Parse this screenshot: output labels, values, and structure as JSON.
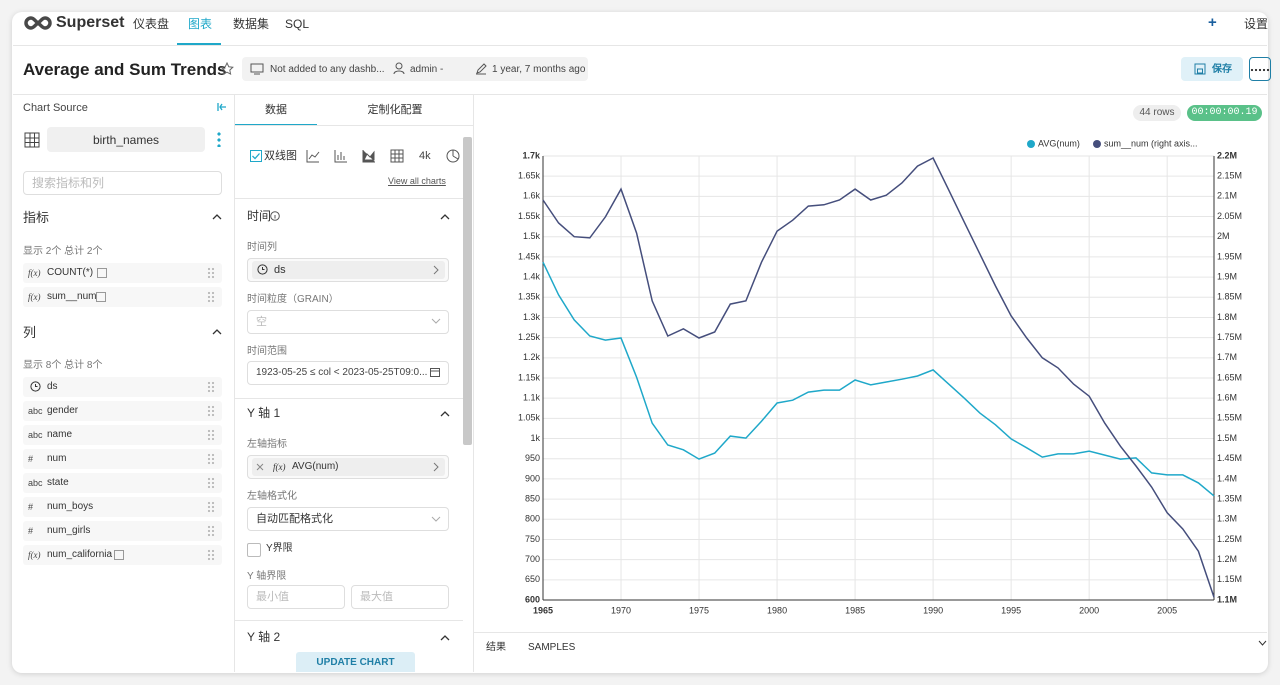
{
  "nav": {
    "brand": "Superset",
    "items": [
      "仪表盘",
      "图表",
      "数据集",
      "SQL"
    ],
    "settings": "设置"
  },
  "header": {
    "title": "Average and Sum Trends",
    "dashboards": "Not added to any dashb...",
    "owner": "admin -",
    "modified": "1 year, 7 months ago",
    "save": "保存"
  },
  "datasource": {
    "heading": "Chart Source",
    "name": "birth_names",
    "search_placeholder": "搜索指标和列",
    "metrics_heading": "指标",
    "metrics_count": "显示 2个 总计 2个",
    "metrics": [
      {
        "icon": "f(x)",
        "name": "COUNT(*)"
      },
      {
        "icon": "f(x)",
        "name": "sum__num"
      }
    ],
    "columns_heading": "列",
    "columns_count": "显示 8个 总计 8个",
    "columns": [
      {
        "name": "ds"
      },
      {
        "icon": "abc",
        "name": "gender"
      },
      {
        "icon": "abc",
        "name": "name"
      },
      {
        "icon": "#",
        "name": "num"
      },
      {
        "icon": "abc",
        "name": "state"
      },
      {
        "icon": "#",
        "name": "num_boys"
      },
      {
        "icon": "#",
        "name": "num_girls"
      },
      {
        "icon": "f(x)",
        "name": "num_california"
      }
    ]
  },
  "control_panel": {
    "tabs": [
      "数据",
      "定制化配置"
    ],
    "viz_type": "双线图",
    "viz_4k": "4k",
    "view_all": "View all charts",
    "time_section": "时间",
    "time_column_label": "时间列",
    "time_column": "ds",
    "grain_label": "时间粒度（GRAIN）",
    "grain_placeholder": "空",
    "range_label": "时间范围",
    "range": "1923-05-25 ≤ col < 2023-05-25T09:0...",
    "y1_section": "Y 轴 1",
    "left_metric_label": "左轴指标",
    "left_metric_icon": "f(x)",
    "left_metric": "AVG(num)",
    "left_format_label": "左轴格式化",
    "left_format": "自动匹配格式化",
    "y_bounds_check": "Y界限",
    "y_bounds_label": "Y 轴界限",
    "min_placeholder": "最小值",
    "max_placeholder": "最大值",
    "y2_section": "Y 轴 2",
    "update": "UPDATE CHART"
  },
  "results": {
    "rows": "44 rows",
    "timer": "00:00:00.19",
    "tabs": [
      "结果",
      "SAMPLES"
    ]
  },
  "chart_data": {
    "type": "line",
    "x": [
      1965,
      1966,
      1967,
      1968,
      1969,
      1970,
      1971,
      1972,
      1973,
      1974,
      1975,
      1976,
      1977,
      1978,
      1979,
      1980,
      1981,
      1982,
      1983,
      1984,
      1985,
      1986,
      1987,
      1988,
      1989,
      1990,
      1991,
      1992,
      1993,
      1994,
      1995,
      1996,
      1997,
      1998,
      1999,
      2000,
      2001,
      2002,
      2003,
      2004,
      2005,
      2006,
      2007,
      2008
    ],
    "series": [
      {
        "name": "AVG(num)",
        "color": "#1fa8c9",
        "values": [
          1437,
          1356,
          1294,
          1254,
          1244,
          1249,
          1152,
          1038,
          984,
          972,
          949,
          964,
          1006,
          1001,
          1043,
          1088,
          1095,
          1115,
          1120,
          1120,
          1145,
          1133,
          1140,
          1147,
          1155,
          1170,
          1135,
          1100,
          1063,
          1034,
          999,
          977,
          954,
          962,
          962,
          969,
          959,
          949,
          952,
          915,
          910,
          910,
          890,
          858
        ]
      },
      {
        "name": "sum__num (right axis...",
        "color": "#454e7c",
        "axis": "y2",
        "values": [
          2091000,
          2034000,
          2000000,
          1997000,
          2049000,
          2118000,
          2009000,
          1841000,
          1754000,
          1772000,
          1749000,
          1764000,
          1833000,
          1841000,
          1937000,
          2014000,
          2041000,
          2076000,
          2079000,
          2091000,
          2118000,
          2091000,
          2103000,
          2133000,
          2175000,
          2195000,
          2116000,
          2036000,
          1957000,
          1878000,
          1804000,
          1749000,
          1700000,
          1675000,
          1635000,
          1605000,
          1538000,
          1481000,
          1432000,
          1380000,
          1316000,
          1276000,
          1221000,
          1107000
        ]
      }
    ],
    "xlim": [
      1965,
      2008
    ],
    "xticks": [
      1965,
      1970,
      1975,
      1980,
      1985,
      1990,
      1995,
      2000,
      2005
    ],
    "ylim": [
      600,
      1700
    ],
    "yticks": [
      600,
      650,
      700,
      750,
      800,
      850,
      900,
      950,
      {
        "value": 1000,
        "label": "1k"
      },
      {
        "value": 1050,
        "label": "1.05k"
      },
      {
        "value": 1100,
        "label": "1.1k"
      },
      {
        "value": 1150,
        "label": "1.15k"
      },
      {
        "value": 1200,
        "label": "1.2k"
      },
      {
        "value": 1250,
        "label": "1.25k"
      },
      {
        "value": 1300,
        "label": "1.3k"
      },
      {
        "value": 1350,
        "label": "1.35k"
      },
      {
        "value": 1400,
        "label": "1.4k"
      },
      {
        "value": 1450,
        "label": "1.45k"
      },
      {
        "value": 1500,
        "label": "1.5k"
      },
      {
        "value": 1550,
        "label": "1.55k"
      },
      {
        "value": 1600,
        "label": "1.6k"
      },
      {
        "value": 1650,
        "label": "1.65k"
      },
      {
        "value": 1700,
        "label": "1.7k"
      }
    ],
    "y2lim": [
      1100000,
      2200000
    ],
    "y2ticks": [
      {
        "value": 1100000,
        "label": "1.1M"
      },
      {
        "value": 1150000,
        "label": "1.15M"
      },
      {
        "value": 1200000,
        "label": "1.2M"
      },
      {
        "value": 1250000,
        "label": "1.25M"
      },
      {
        "value": 1300000,
        "label": "1.3M"
      },
      {
        "value": 1350000,
        "label": "1.35M"
      },
      {
        "value": 1400000,
        "label": "1.4M"
      },
      {
        "value": 1450000,
        "label": "1.45M"
      },
      {
        "value": 1500000,
        "label": "1.5M"
      },
      {
        "value": 1550000,
        "label": "1.55M"
      },
      {
        "value": 1600000,
        "label": "1.6M"
      },
      {
        "value": 1650000,
        "label": "1.65M"
      },
      {
        "value": 1700000,
        "label": "1.7M"
      },
      {
        "value": 1750000,
        "label": "1.75M"
      },
      {
        "value": 1800000,
        "label": "1.8M"
      },
      {
        "value": 1850000,
        "label": "1.85M"
      },
      {
        "value": 1900000,
        "label": "1.9M"
      },
      {
        "value": 1950000,
        "label": "1.95M"
      },
      {
        "value": 2000000,
        "label": "2M"
      },
      {
        "value": 2050000,
        "label": "2.05M"
      },
      {
        "value": 2100000,
        "label": "2.1M"
      },
      {
        "value": 2150000,
        "label": "2.15M"
      },
      {
        "value": 2200000,
        "label": "2.2M"
      }
    ],
    "grid": true,
    "legend": "top-right"
  }
}
